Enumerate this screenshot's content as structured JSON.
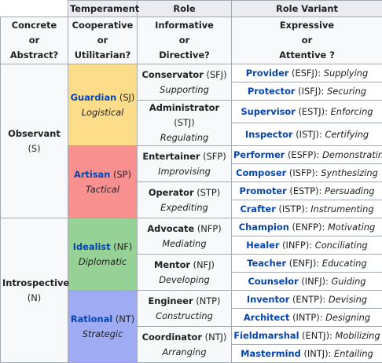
{
  "header": {
    "temperament": "Temperament",
    "role": "Role",
    "role_variant": "Role Variant"
  },
  "subheader": {
    "col1": [
      "Concrete",
      "or",
      "Abstract?"
    ],
    "col2": [
      "Cooperative",
      "or",
      "Utilitarian?"
    ],
    "col3": [
      "Informative",
      "or",
      "Directive?"
    ],
    "col4": [
      "Expressive",
      "or",
      "Attentive ?"
    ]
  },
  "dimensions": [
    {
      "name": "Observant",
      "code": "(S)"
    },
    {
      "name": "Introspective",
      "code": "(N)"
    }
  ],
  "temperaments": [
    {
      "name": "Guardian",
      "code": "(SJ)",
      "desc": "Logistical",
      "color": "#fddc8a"
    },
    {
      "name": "Artisan",
      "code": "(SP)",
      "desc": "Tactical",
      "color": "#f99090"
    },
    {
      "name": "Idealist",
      "code": "(NF)",
      "desc": "Diplomatic",
      "color": "#96d196"
    },
    {
      "name": "Rational",
      "code": "(NT)",
      "desc": "Strategic",
      "color": "#9fabf2"
    }
  ],
  "roles": [
    {
      "name": "Conservator",
      "code": "(SFJ)",
      "desc": "Supporting"
    },
    {
      "name": "Administrator",
      "code": "(STJ)",
      "desc": "Regulating"
    },
    {
      "name": "Entertainer",
      "code": "(SFP)",
      "desc": "Improvising"
    },
    {
      "name": "Operator",
      "code": "(STP)",
      "desc": "Expediting"
    },
    {
      "name": "Advocate",
      "code": "(NFP)",
      "desc": "Mediating"
    },
    {
      "name": "Mentor",
      "code": "(NFJ)",
      "desc": "Developing"
    },
    {
      "name": "Engineer",
      "code": "(NTP)",
      "desc": "Constructing"
    },
    {
      "name": "Coordinator",
      "code": "(NTJ)",
      "desc": "Arranging"
    }
  ],
  "variants": [
    {
      "name": "Provider",
      "code": "(ESFJ):",
      "desc": "Supplying"
    },
    {
      "name": "Protector",
      "code": "(ISFJ):",
      "desc": "Securing"
    },
    {
      "name": "Supervisor",
      "code": "(ESTJ):",
      "desc": "Enforcing"
    },
    {
      "name": "Inspector",
      "code": "(ISTJ):",
      "desc": "Certifying"
    },
    {
      "name": "Performer",
      "code": "(ESFP):",
      "desc": "Demonstrating"
    },
    {
      "name": "Composer",
      "code": "(ISFP):",
      "desc": "Synthesizing"
    },
    {
      "name": "Promoter",
      "code": "(ESTP):",
      "desc": "Persuading"
    },
    {
      "name": "Crafter",
      "code": "(ISTP):",
      "desc": "Instrumenting"
    },
    {
      "name": "Champion",
      "code": "(ENFP):",
      "desc": "Motivating"
    },
    {
      "name": "Healer",
      "code": "(INFP):",
      "desc": "Conciliating"
    },
    {
      "name": "Teacher",
      "code": "(ENFJ):",
      "desc": "Educating"
    },
    {
      "name": "Counselor",
      "code": "(INFJ):",
      "desc": "Guiding"
    },
    {
      "name": "Inventor",
      "code": "(ENTP):",
      "desc": "Devising"
    },
    {
      "name": "Architect",
      "code": "(INTP):",
      "desc": "Designing"
    },
    {
      "name": "Fieldmarshal",
      "code": "(ENTJ):",
      "desc": "Mobilizing"
    },
    {
      "name": "Mastermind",
      "code": "(INTJ):",
      "desc": "Entailing"
    }
  ]
}
